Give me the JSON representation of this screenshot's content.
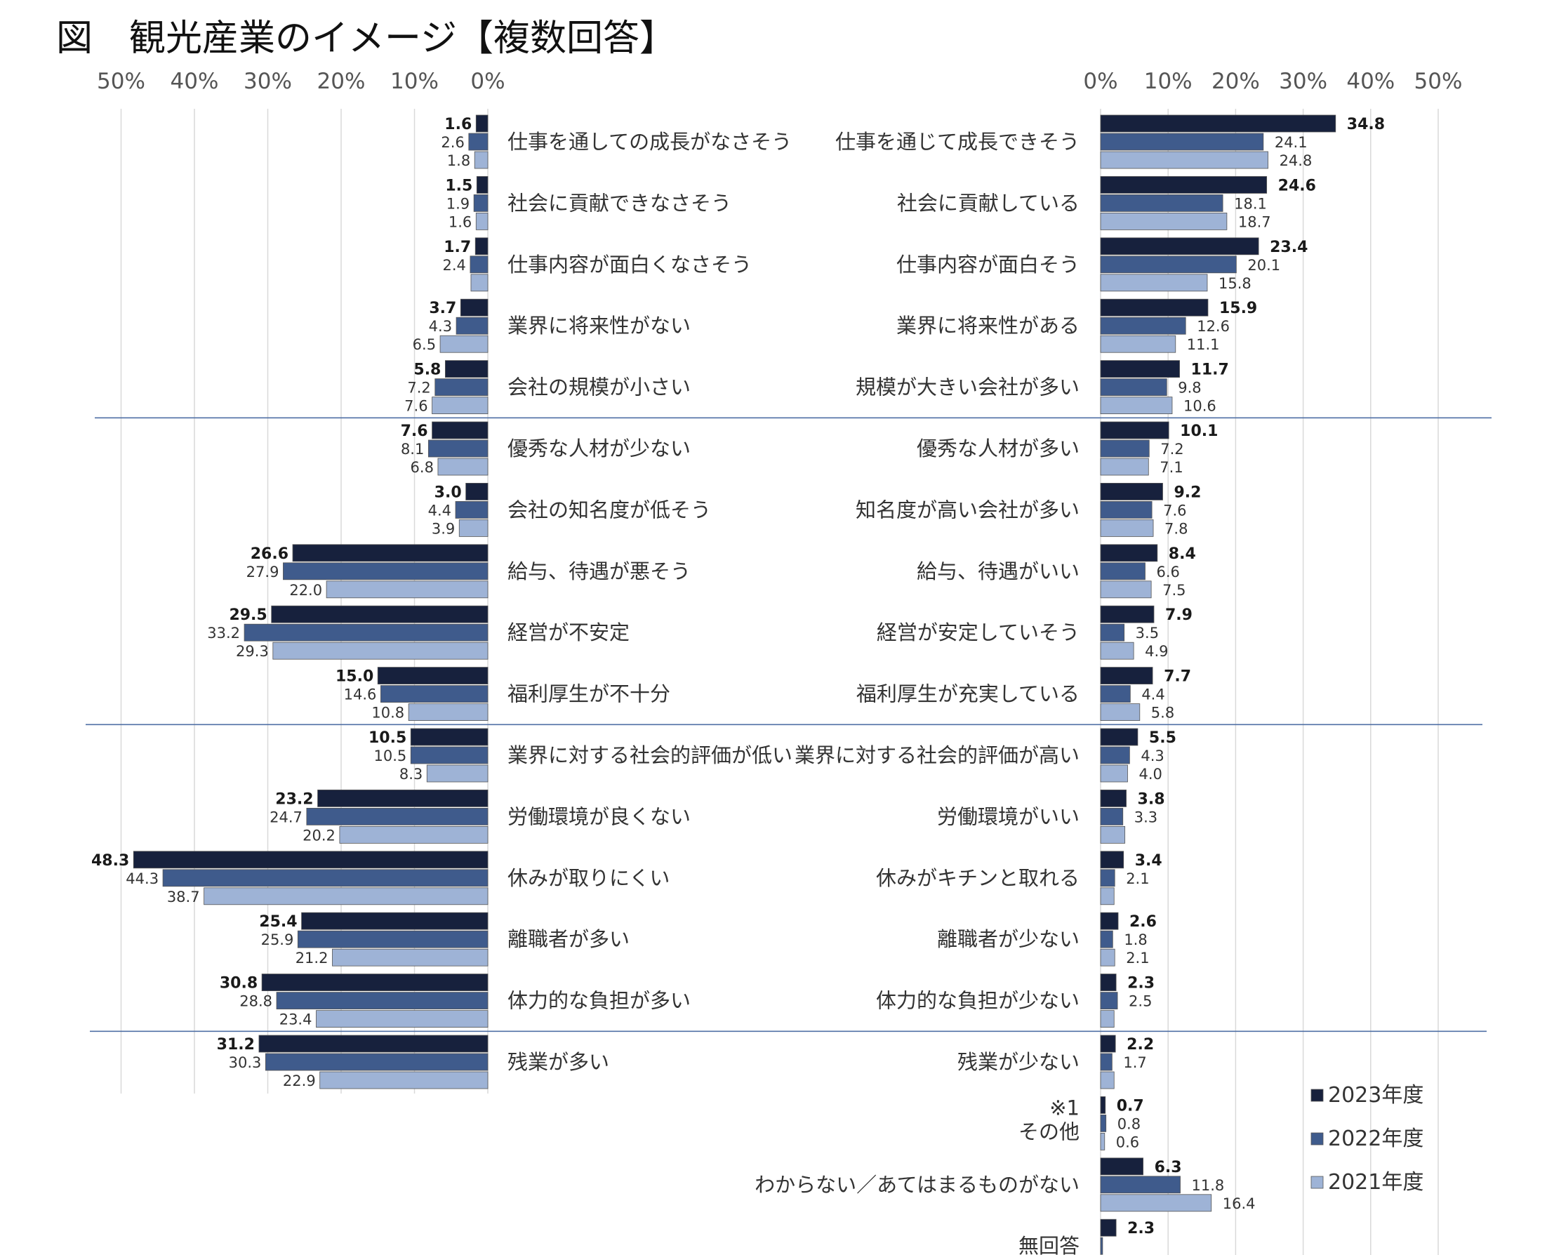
{
  "title": "図　観光産業のイメージ【複数回答】",
  "colors": {
    "y2023": "#17213d",
    "y2022": "#3f5b8c",
    "y2021": "#9eb3d6",
    "separator": "#4f6fa5",
    "grid": "#d9d9d9"
  },
  "chart_data": {
    "type": "bar",
    "layout": "butterfly-horizontal",
    "left_axis_ticks": [
      "50%",
      "40%",
      "30%",
      "20%",
      "10%",
      "0%"
    ],
    "right_axis_ticks": [
      "0%",
      "10%",
      "20%",
      "30%",
      "40%",
      "50%"
    ],
    "xlim": [
      0,
      50
    ],
    "grid": true,
    "legend_position": "bottom-right",
    "series_names": [
      "2023年度",
      "2022年度",
      "2021年度"
    ],
    "negative": [
      {
        "label": "仕事を通しての成長がなさそう",
        "values": [
          1.6,
          2.6,
          1.8
        ]
      },
      {
        "label": "社会に貢献できなさそう",
        "values": [
          1.5,
          1.9,
          1.6
        ]
      },
      {
        "label": "仕事内容が面白くなさそう",
        "values": [
          1.7,
          2.4,
          2.3
        ]
      },
      {
        "label": "業界に将来性がない",
        "values": [
          3.7,
          4.3,
          6.5
        ]
      },
      {
        "label": "会社の規模が小さい",
        "values": [
          5.8,
          7.2,
          7.6
        ]
      },
      {
        "label": "優秀な人材が少ない",
        "values": [
          7.6,
          8.1,
          6.8
        ]
      },
      {
        "label": "会社の知名度が低そう",
        "values": [
          3.0,
          4.4,
          3.9
        ]
      },
      {
        "label": "給与、待遇が悪そう",
        "values": [
          26.6,
          27.9,
          22.0
        ]
      },
      {
        "label": "経営が不安定",
        "values": [
          29.5,
          33.2,
          29.3
        ]
      },
      {
        "label": "福利厚生が不十分",
        "values": [
          15.0,
          14.6,
          10.8
        ]
      },
      {
        "label": "業界に対する社会的評価が低い",
        "values": [
          10.5,
          10.5,
          8.3
        ]
      },
      {
        "label": "労働環境が良くない",
        "values": [
          23.2,
          24.7,
          20.2
        ]
      },
      {
        "label": "休みが取りにくい",
        "values": [
          48.3,
          44.3,
          38.7
        ]
      },
      {
        "label": "離職者が多い",
        "values": [
          25.4,
          25.9,
          21.2
        ]
      },
      {
        "label": "体力的な負担が多い",
        "values": [
          30.8,
          28.8,
          23.4
        ]
      },
      {
        "label": "残業が多い",
        "values": [
          31.2,
          30.3,
          22.9
        ]
      }
    ],
    "negative_hidden_labels": [
      [
        2,
        2
      ]
    ],
    "positive": [
      {
        "label": "仕事を通じて成長できそう",
        "values": [
          34.8,
          24.1,
          24.8
        ]
      },
      {
        "label": "社会に貢献している",
        "values": [
          24.6,
          18.1,
          18.7
        ]
      },
      {
        "label": "仕事内容が面白そう",
        "values": [
          23.4,
          20.1,
          15.8
        ]
      },
      {
        "label": "業界に将来性がある",
        "values": [
          15.9,
          12.6,
          11.1
        ]
      },
      {
        "label": "規模が大きい会社が多い",
        "values": [
          11.7,
          9.8,
          10.6
        ]
      },
      {
        "label": "優秀な人材が多い",
        "values": [
          10.1,
          7.2,
          7.1
        ]
      },
      {
        "label": "知名度が高い会社が多い",
        "values": [
          9.2,
          7.6,
          7.8
        ]
      },
      {
        "label": "給与、待遇がいい",
        "values": [
          8.4,
          6.6,
          7.5
        ]
      },
      {
        "label": "経営が安定していそう",
        "values": [
          7.9,
          3.5,
          4.9
        ]
      },
      {
        "label": "福利厚生が充実している",
        "values": [
          7.7,
          4.4,
          5.8
        ]
      },
      {
        "label": "業界に対する社会的評価が高い",
        "values": [
          5.5,
          4.3,
          4.0
        ]
      },
      {
        "label": "労働環境がいい",
        "values": [
          3.8,
          3.3,
          3.6
        ]
      },
      {
        "label": "休みがキチンと取れる",
        "values": [
          3.4,
          2.1,
          2.0
        ]
      },
      {
        "label": "離職者が少ない",
        "values": [
          2.6,
          1.8,
          2.1
        ]
      },
      {
        "label": "体力的な負担が少ない",
        "values": [
          2.3,
          2.5,
          2.0
        ]
      },
      {
        "label": "残業が少ない",
        "values": [
          2.2,
          1.7,
          2.0
        ]
      },
      {
        "label": "その他",
        "note": "※1",
        "values": [
          0.7,
          0.8,
          0.6
        ]
      },
      {
        "label": "わからない／あてはまるものがない",
        "values": [
          6.3,
          11.8,
          16.4
        ]
      },
      {
        "label": "無回答",
        "values": [
          2.3,
          0.3,
          0.0
        ]
      }
    ],
    "positive_hidden_labels": [
      [
        11,
        2
      ],
      [
        12,
        2
      ],
      [
        14,
        2
      ],
      [
        15,
        2
      ],
      [
        18,
        1
      ],
      [
        18,
        2
      ]
    ]
  }
}
